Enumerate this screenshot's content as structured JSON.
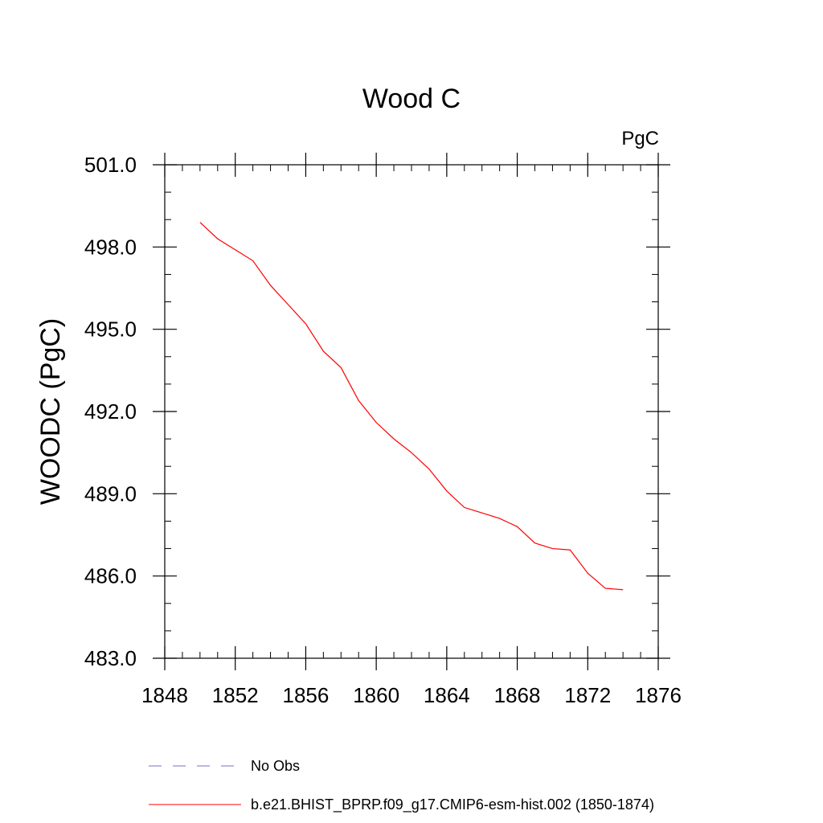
{
  "chart_data": {
    "type": "line",
    "title": "Wood C",
    "units_label": "PgC",
    "ylabel": "WOODC  (PgC)",
    "xlabel": "",
    "xlim": [
      1848,
      1876
    ],
    "ylim": [
      483.0,
      501.0
    ],
    "x_ticks": [
      1848,
      1852,
      1856,
      1860,
      1864,
      1868,
      1872,
      1876
    ],
    "x_tick_labels": [
      "1848",
      "1852",
      "1856",
      "1860",
      "1864",
      "1868",
      "1872",
      "1876"
    ],
    "y_ticks": [
      483.0,
      486.0,
      489.0,
      492.0,
      495.0,
      498.0,
      501.0
    ],
    "y_tick_labels": [
      "483.0",
      "486.0",
      "489.0",
      "492.0",
      "495.0",
      "498.0",
      "501.0"
    ],
    "x_minor_step": 1,
    "y_minor_step": 1,
    "series": [
      {
        "name": "b.e21.BHIST_BPRP.f09_g17.CMIP6-esm-hist.002 (1850-1874)",
        "color": "#ff0000",
        "x": [
          1850,
          1851,
          1852,
          1853,
          1854,
          1855,
          1856,
          1857,
          1858,
          1859,
          1860,
          1861,
          1862,
          1863,
          1864,
          1865,
          1866,
          1867,
          1868,
          1869,
          1870,
          1871,
          1872,
          1873,
          1874
        ],
        "values": [
          498.9,
          498.3,
          497.9,
          497.5,
          496.6,
          495.9,
          495.2,
          494.2,
          493.6,
          492.4,
          491.6,
          491.0,
          490.5,
          489.9,
          489.1,
          488.5,
          488.3,
          488.1,
          487.8,
          487.2,
          487.0,
          486.95,
          486.1,
          485.55,
          485.5
        ]
      }
    ],
    "legend": [
      {
        "label": "No Obs",
        "style": "dashed",
        "color": "#7a6fc4"
      },
      {
        "label": "b.e21.BHIST_BPRP.f09_g17.CMIP6-esm-hist.002 (1850-1874)",
        "style": "solid",
        "color": "#ff0000"
      }
    ]
  }
}
